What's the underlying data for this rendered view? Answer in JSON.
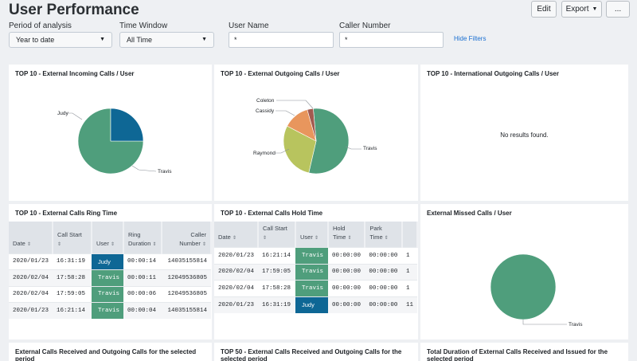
{
  "page": {
    "title": "User Performance"
  },
  "toolbar": {
    "edit": "Edit",
    "export": "Export",
    "more": "..."
  },
  "filters": {
    "period": {
      "label": "Period of analysis",
      "value": "Year to date"
    },
    "time_window": {
      "label": "Time Window",
      "value": "All Time"
    },
    "user_name": {
      "label": "User Name",
      "value": "*"
    },
    "caller_number": {
      "label": "Caller Number",
      "value": "*"
    },
    "hide_filters": "Hide Filters"
  },
  "colors": {
    "green": "#4f9e7c",
    "blue": "#0e6795",
    "olive": "#b8c45e",
    "orange": "#e8965d",
    "brown": "#a25a4f"
  },
  "panels": {
    "incoming": {
      "title": "TOP 10 - External Incoming Calls / User"
    },
    "outgoing": {
      "title": "TOP 10 - External Outgoing Calls / User"
    },
    "international": {
      "title": "TOP 10 - International Outgoing Calls / User",
      "empty": "No results found."
    },
    "ring": {
      "title": "TOP 10 - External Calls Ring Time"
    },
    "hold": {
      "title": "TOP 10 - External Calls Hold Time"
    },
    "missed": {
      "title": "External Missed Calls / User"
    },
    "bottom1": {
      "title": "External Calls Received and Outgoing Calls for the selected period"
    },
    "bottom2": {
      "title": "TOP 50 - External Calls Received and Outgoing Calls for the selected period"
    },
    "bottom3": {
      "title": "Total Duration of External Calls Received and Issued for the selected period"
    }
  },
  "chart_data": [
    {
      "type": "pie",
      "title": "TOP 10 - External Incoming Calls / User",
      "slices": [
        {
          "label": "Travis",
          "value": 75
        },
        {
          "label": "Judy",
          "value": 25
        }
      ]
    },
    {
      "type": "pie",
      "title": "TOP 10 - External Outgoing Calls / User",
      "slices": [
        {
          "label": "Travis",
          "value": 55
        },
        {
          "label": "Raymond",
          "value": 29
        },
        {
          "label": "Cassidy",
          "value": 13
        },
        {
          "label": "Coleton",
          "value": 3
        }
      ]
    },
    {
      "type": "pie",
      "title": "External Missed Calls / User",
      "slices": [
        {
          "label": "Travis",
          "value": 100
        }
      ]
    }
  ],
  "ring_table": {
    "headers": {
      "date": "Date",
      "call_start_1": "Call Start",
      "user": "User",
      "ring_1": "Ring",
      "ring_2": "Duration",
      "caller_1": "Caller",
      "caller_2": "Number"
    },
    "rows": [
      {
        "date": "2020/01/23",
        "start": "16:31:19",
        "user": "Judy",
        "duration": "00:00:14",
        "number": "14035155814"
      },
      {
        "date": "2020/02/04",
        "start": "17:58:28",
        "user": "Travis",
        "duration": "00:00:11",
        "number": "12049536805"
      },
      {
        "date": "2020/02/04",
        "start": "17:59:05",
        "user": "Travis",
        "duration": "00:00:06",
        "number": "12049536805"
      },
      {
        "date": "2020/01/23",
        "start": "16:21:14",
        "user": "Travis",
        "duration": "00:00:04",
        "number": "14035155814"
      }
    ]
  },
  "hold_table": {
    "headers": {
      "date": "Date",
      "call_start": "Call Start",
      "user": "User",
      "hold_1": "Hold",
      "hold_2": "Time",
      "park_1": "Park",
      "park_2": "Time"
    },
    "rows": [
      {
        "date": "2020/01/23",
        "start": "16:21:14",
        "user": "Travis",
        "hold": "00:00:00",
        "park": "00:00:00",
        "extra": "1"
      },
      {
        "date": "2020/02/04",
        "start": "17:59:05",
        "user": "Travis",
        "hold": "00:00:00",
        "park": "00:00:00",
        "extra": "1"
      },
      {
        "date": "2020/02/04",
        "start": "17:58:28",
        "user": "Travis",
        "hold": "00:00:00",
        "park": "00:00:00",
        "extra": "1"
      },
      {
        "date": "2020/01/23",
        "start": "16:31:19",
        "user": "Judy",
        "hold": "00:00:00",
        "park": "00:00:00",
        "extra": "11"
      }
    ]
  }
}
